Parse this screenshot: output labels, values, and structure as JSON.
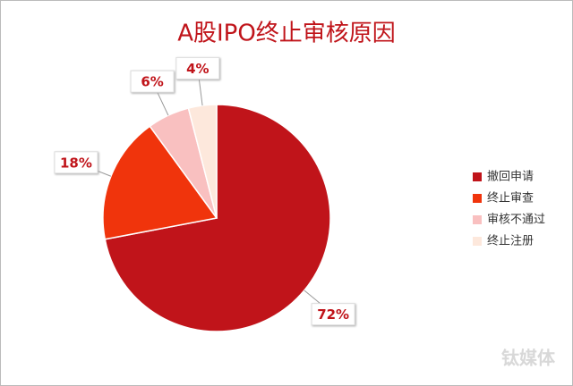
{
  "chart_data": {
    "type": "pie",
    "title": "A股IPO终止审核原因",
    "categories": [
      "撤回申请",
      "终止审查",
      "审核不通过",
      "终止注册"
    ],
    "values": [
      72,
      18,
      6,
      4
    ],
    "value_labels": [
      "72%",
      "18%",
      "6%",
      "4%"
    ],
    "colors": [
      "#c0141a",
      "#f0340c",
      "#f9c0c0",
      "#fde8dc"
    ],
    "legend": "right"
  },
  "watermark": "钛媒体"
}
